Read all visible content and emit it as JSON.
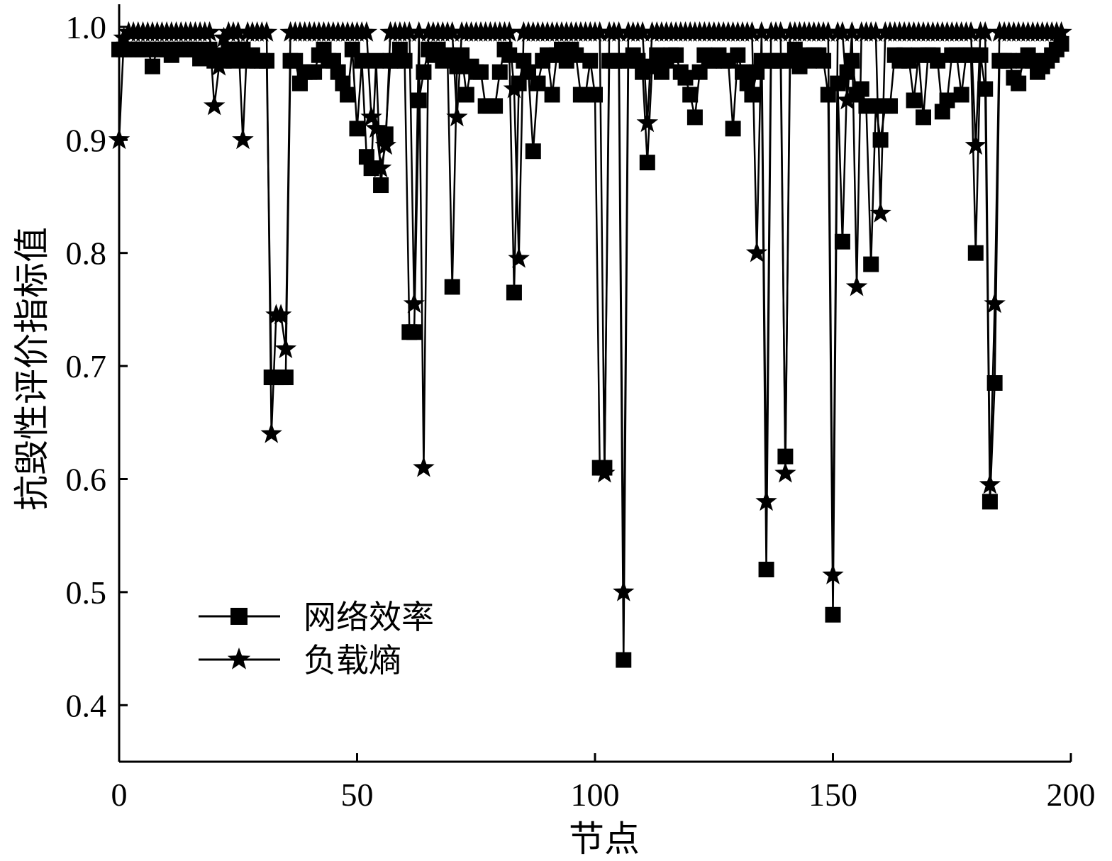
{
  "chart_data": {
    "type": "line",
    "xlabel": "节点",
    "ylabel": "抗毁性评价指标值",
    "xlim": [
      0,
      200
    ],
    "ylim": [
      0.35,
      1.02
    ],
    "xticks": [
      "0",
      "50",
      "100",
      "150",
      "200"
    ],
    "yticks": [
      "0.4",
      "0.5",
      "0.6",
      "0.7",
      "0.8",
      "0.9",
      "1.0"
    ],
    "grid": false,
    "legend_position": "lower-left",
    "series": [
      {
        "name": "网络效率",
        "marker": "square",
        "color": "#000000",
        "values": [
          0.98,
          0.98,
          0.98,
          0.98,
          0.98,
          0.98,
          0.98,
          0.965,
          0.98,
          0.98,
          0.98,
          0.975,
          0.98,
          0.98,
          0.98,
          0.98,
          0.98,
          0.972,
          0.975,
          0.98,
          0.97,
          0.975,
          0.97,
          0.98,
          0.97,
          0.98,
          0.98,
          0.97,
          0.975,
          0.97,
          0.97,
          0.97,
          0.69,
          0.69,
          0.69,
          0.69,
          0.97,
          0.97,
          0.95,
          0.96,
          0.96,
          0.96,
          0.975,
          0.98,
          0.97,
          0.97,
          0.96,
          0.95,
          0.94,
          0.98,
          0.91,
          0.97,
          0.885,
          0.875,
          0.97,
          0.86,
          0.905,
          0.97,
          0.97,
          0.98,
          0.97,
          0.73,
          0.73,
          0.935,
          0.96,
          0.98,
          0.975,
          0.98,
          0.97,
          0.975,
          0.77,
          0.965,
          0.975,
          0.94,
          0.965,
          0.96,
          0.96,
          0.93,
          0.93,
          0.93,
          0.96,
          0.98,
          0.975,
          0.765,
          0.95,
          0.97,
          0.96,
          0.89,
          0.95,
          0.97,
          0.975,
          0.94,
          0.975,
          0.98,
          0.97,
          0.98,
          0.975,
          0.94,
          0.94,
          0.97,
          0.94,
          0.61,
          0.61,
          0.97,
          0.97,
          0.97,
          0.44,
          0.97,
          0.975,
          0.97,
          0.96,
          0.88,
          0.965,
          0.975,
          0.96,
          0.97,
          0.975,
          0.975,
          0.96,
          0.955,
          0.94,
          0.92,
          0.96,
          0.975,
          0.97,
          0.97,
          0.975,
          0.97,
          0.97,
          0.91,
          0.975,
          0.96,
          0.95,
          0.94,
          0.96,
          0.97,
          0.52,
          0.97,
          0.97,
          0.97,
          0.62,
          0.97,
          0.98,
          0.965,
          0.975,
          0.97,
          0.975,
          0.975,
          0.97,
          0.94,
          0.48,
          0.95,
          0.81,
          0.96,
          0.97,
          0.94,
          0.945,
          0.93,
          0.79,
          0.93,
          0.9,
          0.93,
          0.93,
          0.975,
          0.97,
          0.975,
          0.97,
          0.935,
          0.975,
          0.92,
          0.975,
          0.975,
          0.97,
          0.925,
          0.935,
          0.975,
          0.975,
          0.94,
          0.975,
          0.975,
          0.8,
          0.975,
          0.945,
          0.58,
          0.685,
          0.97,
          0.97,
          0.97,
          0.955,
          0.95,
          0.97,
          0.975,
          0.97,
          0.96,
          0.965,
          0.97,
          0.975,
          0.98,
          0.985
        ]
      },
      {
        "name": "负载熵",
        "marker": "star",
        "color": "#000000",
        "values": [
          0.9,
          0.99,
          0.995,
          0.995,
          0.995,
          0.995,
          0.995,
          0.995,
          0.995,
          0.995,
          0.995,
          0.995,
          0.995,
          0.995,
          0.995,
          0.995,
          0.995,
          0.995,
          0.995,
          0.995,
          0.93,
          0.965,
          0.99,
          0.995,
          0.995,
          0.995,
          0.9,
          0.995,
          0.995,
          0.995,
          0.995,
          0.995,
          0.64,
          0.745,
          0.745,
          0.715,
          0.995,
          0.995,
          0.995,
          0.995,
          0.995,
          0.995,
          0.995,
          0.995,
          0.995,
          0.995,
          0.995,
          0.995,
          0.995,
          0.995,
          0.995,
          0.995,
          0.995,
          0.92,
          0.91,
          0.875,
          0.895,
          0.995,
          0.995,
          0.995,
          0.995,
          0.995,
          0.755,
          0.995,
          0.61,
          0.995,
          0.995,
          0.995,
          0.995,
          0.995,
          0.995,
          0.92,
          0.995,
          0.995,
          0.995,
          0.995,
          0.995,
          0.995,
          0.995,
          0.995,
          0.995,
          0.995,
          0.995,
          0.945,
          0.795,
          0.995,
          0.995,
          0.995,
          0.995,
          0.995,
          0.995,
          0.995,
          0.995,
          0.995,
          0.995,
          0.995,
          0.995,
          0.995,
          0.995,
          0.995,
          0.995,
          0.995,
          0.605,
          0.995,
          0.995,
          0.995,
          0.5,
          0.995,
          0.995,
          0.995,
          0.995,
          0.915,
          0.995,
          0.995,
          0.995,
          0.995,
          0.995,
          0.995,
          0.995,
          0.995,
          0.995,
          0.995,
          0.995,
          0.995,
          0.995,
          0.995,
          0.995,
          0.995,
          0.995,
          0.995,
          0.995,
          0.995,
          0.995,
          0.995,
          0.8,
          0.995,
          0.58,
          0.995,
          0.995,
          0.995,
          0.605,
          0.995,
          0.995,
          0.995,
          0.995,
          0.995,
          0.995,
          0.995,
          0.995,
          0.995,
          0.515,
          0.995,
          0.995,
          0.935,
          0.995,
          0.77,
          0.995,
          0.995,
          0.995,
          0.995,
          0.835,
          0.995,
          0.995,
          0.995,
          0.995,
          0.995,
          0.995,
          0.995,
          0.995,
          0.995,
          0.995,
          0.995,
          0.995,
          0.995,
          0.995,
          0.995,
          0.995,
          0.995,
          0.995,
          0.995,
          0.895,
          0.995,
          0.995,
          0.595,
          0.755,
          0.995,
          0.995,
          0.995,
          0.995,
          0.995,
          0.995,
          0.995,
          0.995,
          0.995,
          0.995,
          0.995,
          0.995,
          0.995,
          0.995
        ]
      }
    ]
  }
}
